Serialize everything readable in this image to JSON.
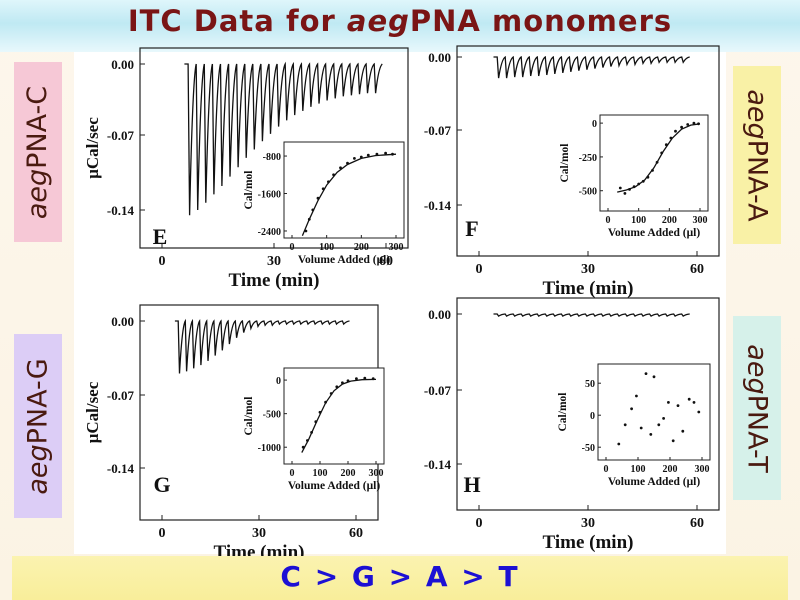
{
  "header": {
    "title_prefix": "ITC Data for ",
    "title_italic": "aeg",
    "title_suffix": "PNA monomers"
  },
  "side_labels": {
    "left_top": {
      "italic": "aeg",
      "rest": "PNA-C",
      "bg": "#f6c8d6"
    },
    "left_bottom": {
      "italic": "aeg",
      "rest": "PNA-G",
      "bg": "#dccdf6"
    },
    "right_top": {
      "italic": "aeg",
      "rest": "PNA-A",
      "bg": "#f9f1a6"
    },
    "right_bottom": {
      "italic": "aeg",
      "rest": "PNA-T",
      "bg": "#d6f1ea"
    }
  },
  "footer": {
    "order_text": "C > G > A > T"
  },
  "chart_data": [
    {
      "panel": "E",
      "type": "line",
      "xlabel": "Time (min)",
      "ylabel": "μCal/sec",
      "xticks": [
        "0",
        "30",
        "60"
      ],
      "yticks": [
        "0.00",
        "-0.07",
        "-0.14"
      ],
      "xlim": [
        0,
        60
      ],
      "ylim": [
        -0.18,
        0.005
      ],
      "injections": {
        "count": 24,
        "x_start": 7,
        "x_end": 59,
        "peaks": [
          -0.145,
          -0.14,
          -0.133,
          -0.125,
          -0.117,
          -0.108,
          -0.099,
          -0.09,
          -0.082,
          -0.074,
          -0.067,
          -0.06,
          -0.054,
          -0.049,
          -0.045,
          -0.041,
          -0.038,
          -0.035,
          -0.033,
          -0.031,
          -0.03,
          -0.029,
          -0.028,
          -0.028
        ]
      },
      "inset": {
        "type": "scatter",
        "xlabel": "Volume Added (μl)",
        "ylabel": "Cal/mol",
        "xticks": [
          "0",
          "100",
          "200",
          "300"
        ],
        "yticks": [
          "-800",
          "-1600",
          "-2400"
        ],
        "xlim": [
          0,
          300
        ],
        "ylim": [
          -2550,
          -500
        ],
        "x": [
          40,
          50,
          60,
          75,
          90,
          105,
          120,
          140,
          160,
          180,
          200,
          220,
          245,
          270,
          290
        ],
        "y": [
          -2400,
          -2150,
          -1950,
          -1700,
          -1500,
          -1350,
          -1200,
          -1050,
          -950,
          -850,
          -820,
          -780,
          -760,
          -740,
          -760
        ],
        "fit_x": [
          30,
          50,
          75,
          100,
          130,
          160,
          200,
          240,
          300
        ],
        "fit_y": [
          -2500,
          -2150,
          -1750,
          -1420,
          -1150,
          -980,
          -850,
          -790,
          -760
        ]
      }
    },
    {
      "panel": "F",
      "type": "line",
      "xlabel": "Time (min)",
      "ylabel": "",
      "xticks": [
        "0",
        "30",
        "60"
      ],
      "yticks": [
        "0.00",
        "-0.07",
        "-0.14"
      ],
      "xlim": [
        0,
        60
      ],
      "ylim": [
        -0.18,
        0.005
      ],
      "injections": {
        "count": 24,
        "x_start": 5,
        "x_end": 58,
        "peaks": [
          -0.02,
          -0.02,
          -0.019,
          -0.019,
          -0.018,
          -0.018,
          -0.017,
          -0.016,
          -0.015,
          -0.014,
          -0.013,
          -0.012,
          -0.011,
          -0.01,
          -0.009,
          -0.008,
          -0.007,
          -0.007,
          -0.006,
          -0.006,
          -0.005,
          -0.005,
          -0.005,
          -0.005
        ]
      },
      "inset": {
        "type": "scatter",
        "xlabel": "Volume Added (μl)",
        "ylabel": "Cal/mol",
        "xticks": [
          "0",
          "100",
          "200",
          "300"
        ],
        "yticks": [
          "0",
          "-250",
          "-500"
        ],
        "xlim": [
          0,
          300
        ],
        "ylim": [
          -650,
          60
        ],
        "x": [
          40,
          55,
          70,
          85,
          100,
          115,
          130,
          145,
          160,
          175,
          190,
          205,
          220,
          240,
          260,
          280,
          295
        ],
        "y": [
          -480,
          -520,
          -490,
          -470,
          -450,
          -430,
          -400,
          -350,
          -290,
          -220,
          -160,
          -110,
          -60,
          -30,
          -10,
          0,
          -5
        ],
        "fit_x": [
          30,
          60,
          90,
          120,
          150,
          180,
          210,
          240,
          270,
          300
        ],
        "fit_y": [
          -510,
          -495,
          -470,
          -420,
          -330,
          -210,
          -110,
          -45,
          -15,
          -5
        ]
      }
    },
    {
      "panel": "G",
      "type": "line",
      "xlabel": "Time (min)",
      "ylabel": "μCal/sec",
      "xticks": [
        "0",
        "30",
        "60"
      ],
      "yticks": [
        "0.00",
        "-0.07",
        "-0.14"
      ],
      "xlim": [
        0,
        60
      ],
      "ylim": [
        -0.18,
        0.005
      ],
      "injections": {
        "count": 24,
        "x_start": 5,
        "x_end": 58,
        "peaks": [
          -0.05,
          -0.048,
          -0.045,
          -0.042,
          -0.038,
          -0.033,
          -0.028,
          -0.022,
          -0.016,
          -0.011,
          -0.007,
          -0.005,
          -0.004,
          -0.004,
          -0.003,
          -0.003,
          -0.003,
          -0.003,
          -0.003,
          -0.003,
          -0.003,
          -0.003,
          -0.003,
          -0.003
        ]
      },
      "inset": {
        "type": "scatter",
        "xlabel": "Volume Added (μl)",
        "ylabel": "Cal/mol",
        "xticks": [
          "0",
          "100",
          "200",
          "300"
        ],
        "yticks": [
          "0",
          "-500",
          "-1000"
        ],
        "xlim": [
          0,
          300
        ],
        "ylim": [
          -1250,
          180
        ],
        "x": [
          40,
          55,
          70,
          85,
          100,
          120,
          140,
          160,
          180,
          200,
          230,
          260,
          290
        ],
        "y": [
          -1000,
          -900,
          -780,
          -620,
          -480,
          -330,
          -200,
          -100,
          -40,
          -10,
          20,
          30,
          20
        ],
        "fit_x": [
          35,
          60,
          90,
          120,
          150,
          180,
          210,
          250,
          300
        ],
        "fit_y": [
          -1080,
          -880,
          -600,
          -340,
          -160,
          -60,
          -15,
          5,
          10
        ]
      }
    },
    {
      "panel": "H",
      "type": "line",
      "xlabel": "Time (min)",
      "ylabel": "",
      "xticks": [
        "0",
        "30",
        "60"
      ],
      "yticks": [
        "0.00",
        "-0.07",
        "-0.14"
      ],
      "xlim": [
        0,
        60
      ],
      "ylim": [
        -0.18,
        0.005
      ],
      "injections": {
        "count": 24,
        "x_start": 5,
        "x_end": 58,
        "peaks": [
          -0.002,
          -0.002,
          -0.002,
          -0.002,
          -0.002,
          -0.002,
          -0.002,
          -0.002,
          -0.002,
          -0.002,
          -0.002,
          -0.002,
          -0.002,
          -0.002,
          -0.002,
          -0.002,
          -0.002,
          -0.002,
          -0.002,
          -0.002,
          -0.002,
          -0.002,
          -0.002,
          -0.002
        ]
      },
      "inset": {
        "type": "scatter",
        "xlabel": "Volume Added (μl)",
        "ylabel": "Cal/mol",
        "xticks": [
          "0",
          "100",
          "200",
          "300"
        ],
        "yticks": [
          "50",
          "0",
          "-50"
        ],
        "xlim": [
          0,
          300
        ],
        "ylim": [
          -70,
          80
        ],
        "x": [
          40,
          60,
          80,
          95,
          110,
          125,
          140,
          150,
          165,
          180,
          195,
          210,
          225,
          240,
          260,
          275,
          290
        ],
        "y": [
          -45,
          -15,
          10,
          30,
          -20,
          65,
          -30,
          60,
          -15,
          -5,
          20,
          -40,
          15,
          -25,
          25,
          20,
          5
        ],
        "fit_x": [],
        "fit_y": []
      }
    }
  ]
}
